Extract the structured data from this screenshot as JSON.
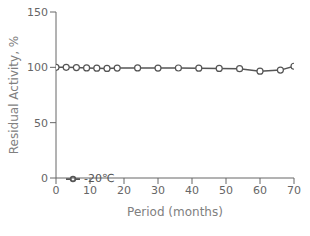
{
  "chart_data": {
    "type": "line",
    "xlabel": "Period (months)",
    "ylabel": "Residual Activity, %",
    "x": [
      0,
      3,
      6,
      9,
      12,
      15,
      18,
      24,
      30,
      36,
      42,
      48,
      54,
      60,
      66,
      70
    ],
    "series": [
      {
        "name": "-20℃",
        "color": "#555555",
        "marker": "circle",
        "values": [
          100,
          100,
          99.8,
          99.5,
          99.2,
          99.0,
          99.3,
          99.5,
          99.3,
          99.4,
          99.2,
          99.0,
          98.8,
          96.5,
          97.5,
          101
        ]
      }
    ],
    "xlim": [
      0,
      70
    ],
    "ylim": [
      0,
      150
    ],
    "xticks": [
      0,
      10,
      20,
      30,
      40,
      50,
      60,
      70
    ],
    "yticks": [
      0,
      50,
      100,
      150
    ],
    "legend": "lower left",
    "grid": false
  }
}
